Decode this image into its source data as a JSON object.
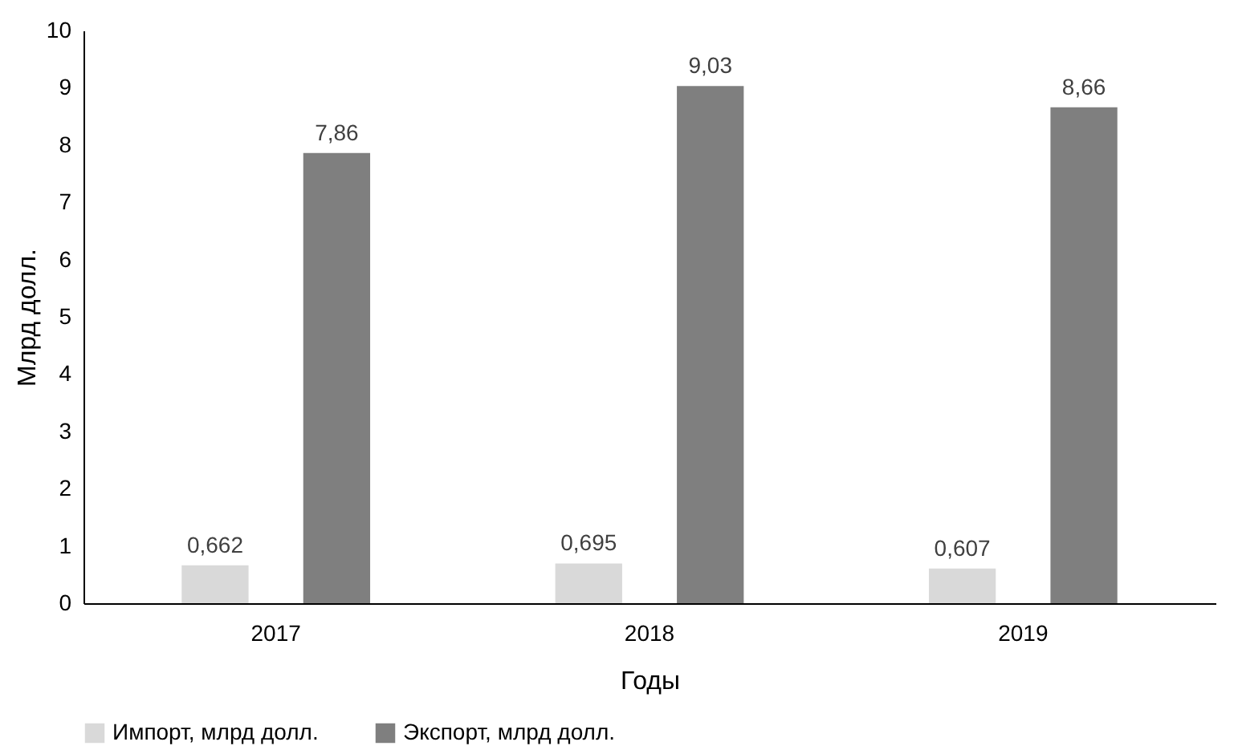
{
  "chart_data": {
    "type": "bar",
    "xlabel": "Годы",
    "ylabel": "Млрд долл.",
    "categories": [
      "2017",
      "2018",
      "2019"
    ],
    "series": [
      {
        "name": "Импорт, млрд  долл.",
        "color": "#d9d9d9",
        "values": [
          0.662,
          0.695,
          0.607
        ],
        "value_labels": [
          "0,662",
          "0,695",
          "0,607"
        ]
      },
      {
        "name": "Экспорт, млрд  долл.",
        "color": "#7f7f7f",
        "values": [
          7.86,
          9.03,
          8.66
        ],
        "value_labels": [
          "7,86",
          "9,03",
          "8,66"
        ]
      }
    ],
    "ylim": [
      0,
      10
    ],
    "yticks": [
      0,
      1,
      2,
      3,
      4,
      5,
      6,
      7,
      8,
      9,
      10
    ],
    "grid": false,
    "legend": "bottom"
  }
}
